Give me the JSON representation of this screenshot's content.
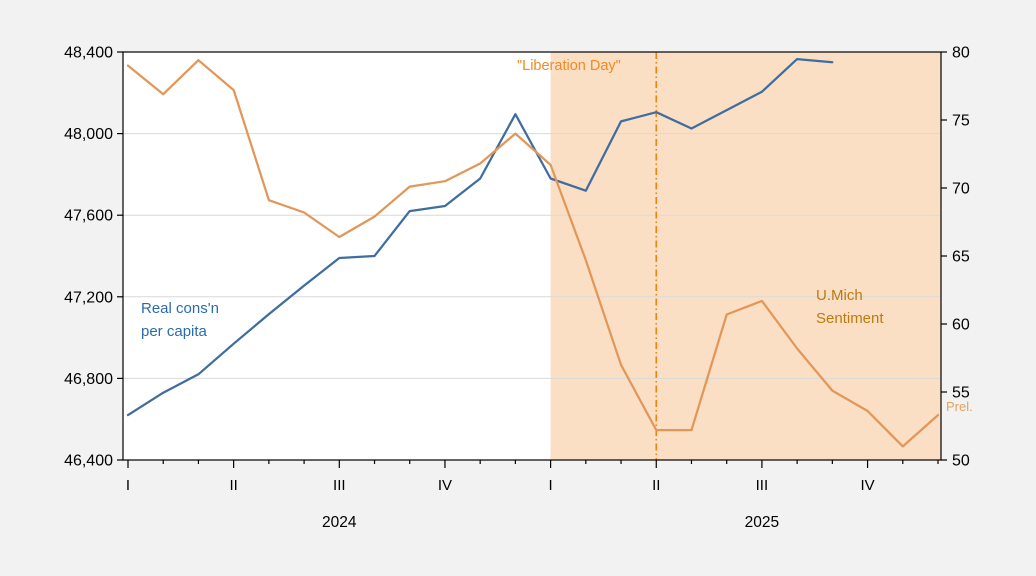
{
  "chart_data": {
    "type": "line",
    "title": "",
    "x_months": [
      "2024-01",
      "2024-02",
      "2024-03",
      "2024-04",
      "2024-05",
      "2024-06",
      "2024-07",
      "2024-08",
      "2024-09",
      "2024-10",
      "2024-11",
      "2024-12",
      "2025-01",
      "2025-02",
      "2025-03",
      "2025-04",
      "2025-05",
      "2025-06",
      "2025-07",
      "2025-08",
      "2025-09",
      "2025-10",
      "2025-11",
      "2025-12"
    ],
    "series": [
      {
        "name": "Real cons'n per capita",
        "axis": "left",
        "color": "#3f6d9f",
        "width": 2.25,
        "values": [
          46620,
          46730,
          46820,
          46970,
          47115,
          47255,
          47390,
          47400,
          47620,
          47645,
          47780,
          48095,
          47780,
          47720,
          48060,
          48105,
          48025,
          48115,
          48205,
          48365,
          48350,
          null,
          null,
          null
        ]
      },
      {
        "name": "U.Mich Sentiment",
        "axis": "right",
        "color": "#e29758",
        "width": 2.25,
        "values": [
          79.0,
          76.9,
          79.4,
          77.2,
          69.1,
          68.2,
          66.4,
          67.9,
          70.1,
          70.5,
          71.8,
          74.0,
          71.7,
          64.7,
          57.0,
          52.2,
          52.2,
          60.7,
          61.7,
          58.2,
          55.1,
          53.6,
          51.0,
          53.3
        ]
      }
    ],
    "left_axis": {
      "min": 46400,
      "max": 48400,
      "step": 400,
      "ticks": [
        48400,
        48000,
        47600,
        47200,
        46800,
        46400
      ],
      "tick_labels": [
        "48,400",
        "48,000",
        "47,600",
        "47,200",
        "46,800",
        "46,400"
      ]
    },
    "right_axis": {
      "min": 50,
      "max": 80,
      "step": 5,
      "ticks": [
        80,
        75,
        70,
        65,
        60,
        55,
        50
      ],
      "tick_labels": [
        "80",
        "75",
        "70",
        "65",
        "60",
        "55",
        "50"
      ]
    },
    "x_axis": {
      "quarter_ticks": [
        {
          "index": 0,
          "label": "I"
        },
        {
          "index": 3,
          "label": "II"
        },
        {
          "index": 6,
          "label": "III"
        },
        {
          "index": 9,
          "label": "IV"
        },
        {
          "index": 12,
          "label": "I"
        },
        {
          "index": 15,
          "label": "II"
        },
        {
          "index": 18,
          "label": "III"
        },
        {
          "index": 21,
          "label": "IV"
        }
      ],
      "year_labels": [
        {
          "index": 6,
          "label": "2024"
        },
        {
          "index": 18,
          "label": "2025"
        }
      ]
    },
    "shaded_region": {
      "start_index": 12,
      "end": "plot-right",
      "color": "#fbdfc4"
    },
    "vline": {
      "index": 15,
      "color": "#f0820f",
      "style": "dash-dot",
      "label": "\"Liberation Day\""
    },
    "grid": "horizontal",
    "gridline_color": "#d9d9d9",
    "frame_color": "#000000",
    "plot_background": "#ffffff",
    "page_background": "#f2f2f2",
    "legend_position": "in-plot-text-labels"
  },
  "annotations": {
    "liberation_day": "\"Liberation Day\"",
    "consumption": {
      "line1": "Real cons'n",
      "line2": "per capita"
    },
    "umich": {
      "line1": "U.Mich",
      "line2": "Sentiment"
    },
    "prel": "Prel."
  }
}
